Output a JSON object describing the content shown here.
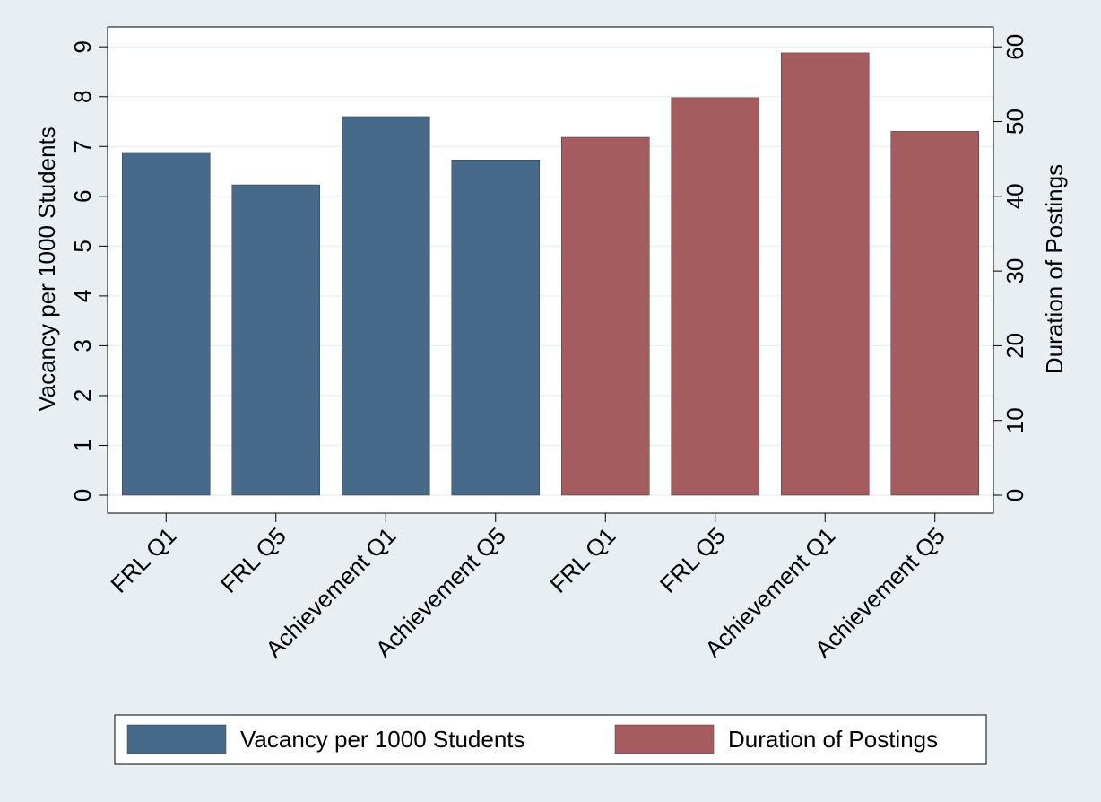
{
  "chart_data": {
    "type": "bar",
    "categories": [
      "FRL Q1",
      "FRL Q5",
      "Achievement Q1",
      "Achievement Q5",
      "FRL Q1",
      "FRL Q5",
      "Achievement Q1",
      "Achievement Q5"
    ],
    "series": [
      {
        "name": "Vacancy per 1000 Students",
        "color": "#476a8a",
        "values": [
          6.88,
          6.23,
          7.6,
          6.73,
          null,
          null,
          null,
          null
        ]
      },
      {
        "name": "Duration of Postings",
        "color": "#a45c5f",
        "axis": "y2",
        "values": [
          null,
          null,
          null,
          null,
          47.9,
          53.2,
          59.2,
          48.7
        ]
      }
    ],
    "ylabel": "Vacancy per 1000 Students",
    "y2label": "Duration of Postings",
    "ylim": [
      -0.36,
      9.4
    ],
    "yticks": [
      0,
      1,
      2,
      3,
      4,
      5,
      6,
      7,
      8,
      9
    ],
    "y2lim": [
      -2.4,
      62.67
    ],
    "y2ticks": [
      0,
      10,
      20,
      30,
      40,
      50,
      60
    ],
    "grid": true,
    "legend": "bottom"
  }
}
